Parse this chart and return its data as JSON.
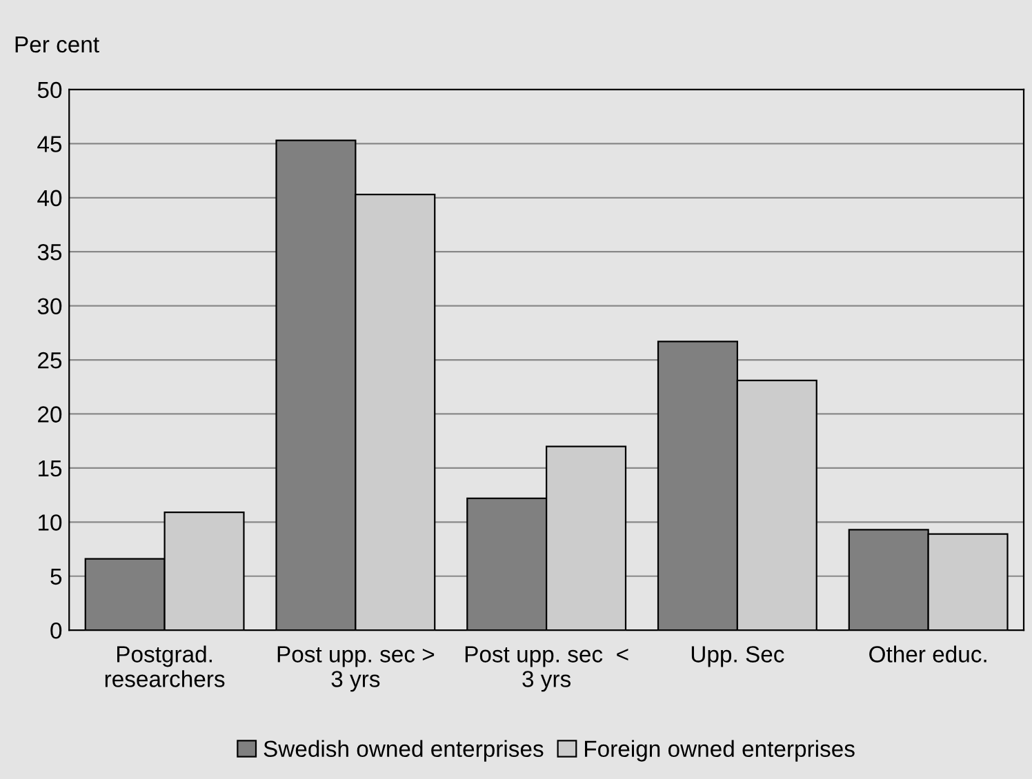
{
  "chart_data": {
    "type": "bar",
    "ylabel": "Per cent",
    "categories": [
      "Postgrad.\nresearchers",
      "Post upp. sec >\n3 yrs",
      "Post upp. sec  <\n3 yrs",
      "Upp. Sec",
      "Other educ."
    ],
    "series": [
      {
        "name": "Swedish owned enterprises",
        "color": "#808080",
        "values": [
          6.6,
          45.3,
          12.2,
          26.7,
          9.3
        ]
      },
      {
        "name": "Foreign owned enterprises",
        "color": "#cccccc",
        "values": [
          10.9,
          40.3,
          17.0,
          23.1,
          8.9
        ]
      }
    ],
    "ylim": [
      0,
      50
    ],
    "yticks": [
      0,
      5,
      10,
      15,
      20,
      25,
      30,
      35,
      40,
      45,
      50
    ],
    "grid": "y",
    "legend": "bottom"
  }
}
